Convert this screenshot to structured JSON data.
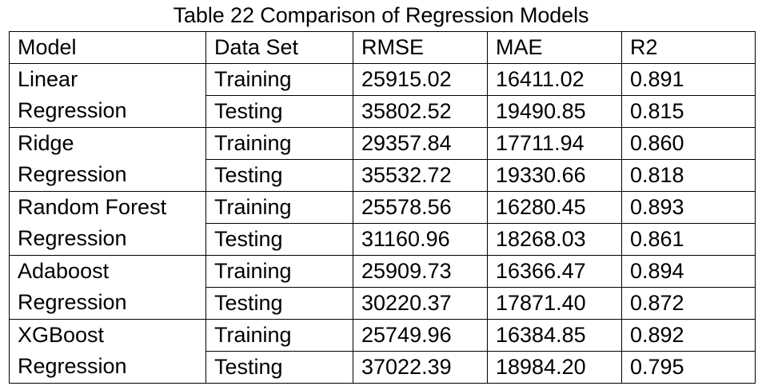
{
  "caption": "Table 22 Comparison of Regression Models",
  "headers": [
    "Model",
    "Data Set",
    "RMSE",
    "MAE",
    "R2"
  ],
  "models": [
    {
      "name_lines": [
        "Linear",
        "Regression"
      ],
      "rows": [
        {
          "set": "Training",
          "rmse": "25915.02",
          "mae": "16411.02",
          "r2": "0.891"
        },
        {
          "set": "Testing",
          "rmse": "35802.52",
          "mae": "19490.85",
          "r2": "0.815"
        }
      ]
    },
    {
      "name_lines": [
        "Ridge",
        "Regression"
      ],
      "rows": [
        {
          "set": "Training",
          "rmse": "29357.84",
          "mae": "17711.94",
          "r2": "0.860"
        },
        {
          "set": "Testing",
          "rmse": "35532.72",
          "mae": "19330.66",
          "r2": "0.818"
        }
      ]
    },
    {
      "name_lines": [
        "Random Forest",
        "Regression"
      ],
      "rows": [
        {
          "set": "Training",
          "rmse": "25578.56",
          "mae": "16280.45",
          "r2": "0.893"
        },
        {
          "set": "Testing",
          "rmse": "31160.96",
          "mae": "18268.03",
          "r2": "0.861"
        }
      ]
    },
    {
      "name_lines": [
        "Adaboost",
        "Regression"
      ],
      "rows": [
        {
          "set": "Training",
          "rmse": "25909.73",
          "mae": "16366.47",
          "r2": "0.894"
        },
        {
          "set": "Testing",
          "rmse": "30220.37",
          "mae": "17871.40",
          "r2": "0.872"
        }
      ]
    },
    {
      "name_lines": [
        "XGBoost",
        "Regression"
      ],
      "rows": [
        {
          "set": "Training",
          "rmse": "25749.96",
          "mae": "16384.85",
          "r2": "0.892"
        },
        {
          "set": "Testing",
          "rmse": "37022.39",
          "mae": "18984.20",
          "r2": "0.795"
        }
      ]
    }
  ]
}
